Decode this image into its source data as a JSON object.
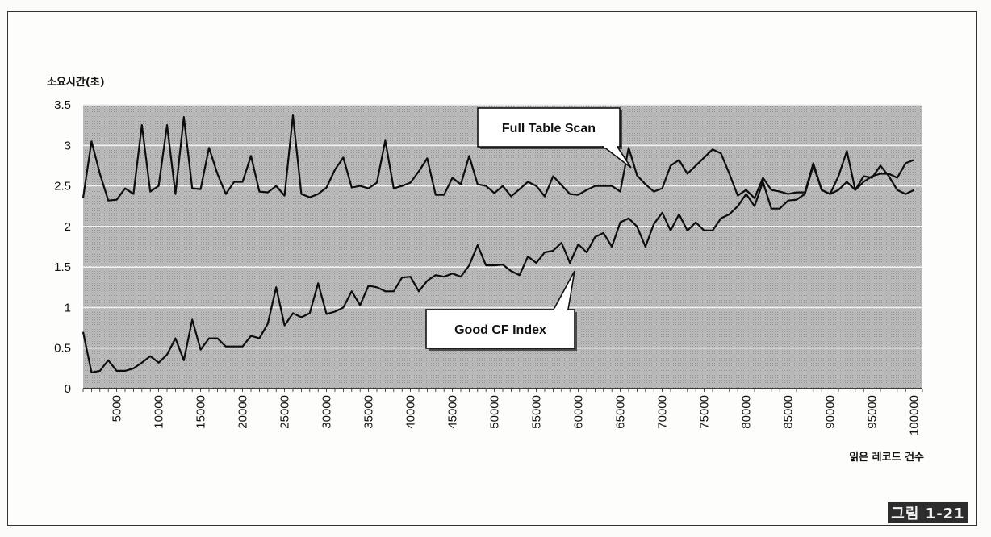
{
  "figure_label": "그림 1-21",
  "chart_data": {
    "type": "line",
    "ylabel": "소요시간(초)",
    "xlabel": "읽은 레코드 건수",
    "ylim": [
      0,
      3.5
    ],
    "xlim": [
      1000,
      101000
    ],
    "yticks": [
      0,
      0.5,
      1,
      1.5,
      2,
      2.5,
      3,
      3.5
    ],
    "ytick_labels": [
      "0",
      "0.5",
      "1",
      "1.5",
      "2",
      "2.5",
      "3",
      "3.5"
    ],
    "xticks": [
      5000,
      10000,
      15000,
      20000,
      25000,
      30000,
      35000,
      40000,
      45000,
      50000,
      55000,
      60000,
      65000,
      70000,
      75000,
      80000,
      85000,
      90000,
      95000,
      100000
    ],
    "xtick_labels": [
      "5000",
      "10000",
      "15000",
      "20000",
      "25000",
      "30000",
      "35000",
      "40000",
      "45000",
      "50000",
      "55000",
      "60000",
      "65000",
      "70000",
      "75000",
      "80000",
      "85000",
      "90000",
      "95000",
      "100000"
    ],
    "grid": true,
    "annotations": [
      {
        "text": "Full Table Scan",
        "series": 0,
        "x": 65000
      },
      {
        "text": "Good CF Index",
        "series": 1,
        "x": 59000
      }
    ],
    "series": [
      {
        "values": [
          [
            1000,
            2.35
          ],
          [
            2000,
            3.05
          ],
          [
            3000,
            2.65
          ],
          [
            4000,
            2.32
          ],
          [
            5000,
            2.33
          ],
          [
            6000,
            2.47
          ],
          [
            7000,
            2.4
          ],
          [
            8000,
            3.25
          ],
          [
            9000,
            2.43
          ],
          [
            10000,
            2.5
          ],
          [
            11000,
            3.25
          ],
          [
            12000,
            2.4
          ],
          [
            13000,
            3.35
          ],
          [
            14000,
            2.47
          ],
          [
            15000,
            2.46
          ],
          [
            16000,
            2.97
          ],
          [
            17000,
            2.65
          ],
          [
            18000,
            2.4
          ],
          [
            19000,
            2.55
          ],
          [
            20000,
            2.55
          ],
          [
            21000,
            2.87
          ],
          [
            22000,
            2.43
          ],
          [
            23000,
            2.42
          ],
          [
            24000,
            2.5
          ],
          [
            25000,
            2.38
          ],
          [
            26000,
            3.37
          ],
          [
            27000,
            2.4
          ],
          [
            28000,
            2.36
          ],
          [
            29000,
            2.4
          ],
          [
            30000,
            2.48
          ],
          [
            31000,
            2.7
          ],
          [
            32000,
            2.85
          ],
          [
            33000,
            2.48
          ],
          [
            34000,
            2.5
          ],
          [
            35000,
            2.47
          ],
          [
            36000,
            2.54
          ],
          [
            37000,
            3.06
          ],
          [
            38000,
            2.47
          ],
          [
            39000,
            2.5
          ],
          [
            40000,
            2.54
          ],
          [
            41000,
            2.68
          ],
          [
            42000,
            2.84
          ],
          [
            43000,
            2.39
          ],
          [
            44000,
            2.39
          ],
          [
            45000,
            2.6
          ],
          [
            46000,
            2.52
          ],
          [
            47000,
            2.87
          ],
          [
            48000,
            2.52
          ],
          [
            49000,
            2.5
          ],
          [
            50000,
            2.41
          ],
          [
            51000,
            2.5
          ],
          [
            52000,
            2.37
          ],
          [
            53000,
            2.46
          ],
          [
            54000,
            2.55
          ],
          [
            55000,
            2.5
          ],
          [
            56000,
            2.37
          ],
          [
            57000,
            2.62
          ],
          [
            58000,
            2.51
          ],
          [
            59000,
            2.4
          ],
          [
            60000,
            2.39
          ],
          [
            61000,
            2.45
          ],
          [
            62000,
            2.5
          ],
          [
            63000,
            2.5
          ],
          [
            64000,
            2.5
          ],
          [
            65000,
            2.43
          ],
          [
            66000,
            2.97
          ],
          [
            67000,
            2.63
          ],
          [
            68000,
            2.52
          ],
          [
            69000,
            2.43
          ],
          [
            70000,
            2.47
          ],
          [
            71000,
            2.75
          ],
          [
            72000,
            2.82
          ],
          [
            73000,
            2.65
          ],
          [
            74000,
            2.75
          ],
          [
            75000,
            2.85
          ],
          [
            76000,
            2.95
          ],
          [
            77000,
            2.9
          ],
          [
            78000,
            2.65
          ],
          [
            79000,
            2.38
          ],
          [
            80000,
            2.45
          ],
          [
            81000,
            2.35
          ],
          [
            82000,
            2.6
          ],
          [
            83000,
            2.45
          ],
          [
            84000,
            2.43
          ],
          [
            85000,
            2.4
          ],
          [
            86000,
            2.42
          ],
          [
            87000,
            2.42
          ],
          [
            88000,
            2.78
          ],
          [
            89000,
            2.45
          ],
          [
            90000,
            2.4
          ],
          [
            91000,
            2.62
          ],
          [
            92000,
            2.93
          ],
          [
            93000,
            2.45
          ],
          [
            94000,
            2.62
          ],
          [
            95000,
            2.6
          ],
          [
            96000,
            2.75
          ],
          [
            97000,
            2.62
          ],
          [
            98000,
            2.45
          ],
          [
            99000,
            2.4
          ],
          [
            100000,
            2.45
          ]
        ]
      },
      {
        "values": [
          [
            1000,
            0.7
          ],
          [
            2000,
            0.2
          ],
          [
            3000,
            0.22
          ],
          [
            4000,
            0.35
          ],
          [
            5000,
            0.22
          ],
          [
            6000,
            0.22
          ],
          [
            7000,
            0.25
          ],
          [
            8000,
            0.32
          ],
          [
            9000,
            0.4
          ],
          [
            10000,
            0.32
          ],
          [
            11000,
            0.42
          ],
          [
            12000,
            0.62
          ],
          [
            13000,
            0.35
          ],
          [
            14000,
            0.85
          ],
          [
            15000,
            0.48
          ],
          [
            16000,
            0.62
          ],
          [
            17000,
            0.62
          ],
          [
            18000,
            0.52
          ],
          [
            19000,
            0.52
          ],
          [
            20000,
            0.52
          ],
          [
            21000,
            0.65
          ],
          [
            22000,
            0.62
          ],
          [
            23000,
            0.8
          ],
          [
            24000,
            1.25
          ],
          [
            25000,
            0.78
          ],
          [
            26000,
            0.93
          ],
          [
            27000,
            0.88
          ],
          [
            28000,
            0.93
          ],
          [
            29000,
            1.3
          ],
          [
            30000,
            0.92
          ],
          [
            31000,
            0.95
          ],
          [
            32000,
            1.0
          ],
          [
            33000,
            1.2
          ],
          [
            34000,
            1.03
          ],
          [
            35000,
            1.27
          ],
          [
            36000,
            1.25
          ],
          [
            37000,
            1.2
          ],
          [
            38000,
            1.2
          ],
          [
            39000,
            1.37
          ],
          [
            40000,
            1.38
          ],
          [
            41000,
            1.2
          ],
          [
            42000,
            1.33
          ],
          [
            43000,
            1.4
          ],
          [
            44000,
            1.38
          ],
          [
            45000,
            1.42
          ],
          [
            46000,
            1.38
          ],
          [
            47000,
            1.52
          ],
          [
            48000,
            1.77
          ],
          [
            49000,
            1.52
          ],
          [
            50000,
            1.52
          ],
          [
            51000,
            1.53
          ],
          [
            52000,
            1.45
          ],
          [
            53000,
            1.4
          ],
          [
            54000,
            1.63
          ],
          [
            55000,
            1.55
          ],
          [
            56000,
            1.68
          ],
          [
            57000,
            1.7
          ],
          [
            58000,
            1.8
          ],
          [
            59000,
            1.55
          ],
          [
            60000,
            1.78
          ],
          [
            61000,
            1.68
          ],
          [
            62000,
            1.87
          ],
          [
            63000,
            1.92
          ],
          [
            64000,
            1.75
          ],
          [
            65000,
            2.05
          ],
          [
            66000,
            2.1
          ],
          [
            67000,
            2.0
          ],
          [
            68000,
            1.75
          ],
          [
            69000,
            2.03
          ],
          [
            70000,
            2.17
          ],
          [
            71000,
            1.95
          ],
          [
            72000,
            2.15
          ],
          [
            73000,
            1.95
          ],
          [
            74000,
            2.05
          ],
          [
            75000,
            1.95
          ],
          [
            76000,
            1.95
          ],
          [
            77000,
            2.1
          ],
          [
            78000,
            2.15
          ],
          [
            79000,
            2.25
          ],
          [
            80000,
            2.4
          ],
          [
            81000,
            2.25
          ],
          [
            82000,
            2.55
          ],
          [
            83000,
            2.22
          ],
          [
            84000,
            2.22
          ],
          [
            85000,
            2.32
          ],
          [
            86000,
            2.33
          ],
          [
            87000,
            2.4
          ],
          [
            88000,
            2.75
          ],
          [
            89000,
            2.45
          ],
          [
            90000,
            2.4
          ],
          [
            91000,
            2.45
          ],
          [
            92000,
            2.55
          ],
          [
            93000,
            2.45
          ],
          [
            94000,
            2.55
          ],
          [
            95000,
            2.62
          ],
          [
            96000,
            2.65
          ],
          [
            97000,
            2.65
          ],
          [
            98000,
            2.6
          ],
          [
            99000,
            2.78
          ],
          [
            100000,
            2.82
          ]
        ]
      }
    ]
  }
}
